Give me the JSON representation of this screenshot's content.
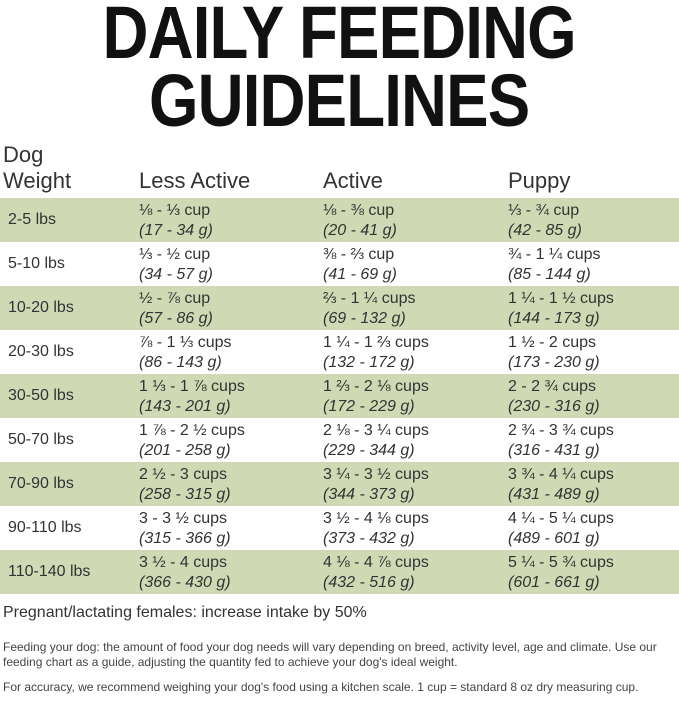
{
  "title": {
    "line1": "DAILY FEEDING",
    "line2": "GUIDELINES"
  },
  "headers": {
    "weight_line1": "Dog",
    "weight_line2": "Weight",
    "less_active": "Less Active",
    "active": "Active",
    "puppy": "Puppy"
  },
  "rows": [
    {
      "weight": "2-5 lbs",
      "less_active": [
        "⅛ - ⅓ cup",
        "(17 - 34 g)"
      ],
      "active": [
        "⅛ - ⅜ cup",
        "(20 - 41 g)"
      ],
      "puppy": [
        "⅓ - ¾ cup",
        "(42 - 85 g)"
      ]
    },
    {
      "weight": "5-10 lbs",
      "less_active": [
        "⅓ - ½ cup",
        "(34 - 57 g)"
      ],
      "active": [
        "⅜ - ⅔ cup",
        "(41 - 69 g)"
      ],
      "puppy": [
        "¾ - 1 ¼ cups",
        "(85 - 144 g)"
      ]
    },
    {
      "weight": "10-20 lbs",
      "less_active": [
        "½ - ⅞ cup",
        "(57 - 86 g)"
      ],
      "active": [
        "⅔ - 1 ¼ cups",
        "(69 - 132 g)"
      ],
      "puppy": [
        "1 ¼ - 1 ½ cups",
        "(144 - 173 g)"
      ]
    },
    {
      "weight": "20-30 lbs",
      "less_active": [
        "⅞ - 1 ⅓ cups",
        "(86 - 143 g)"
      ],
      "active": [
        "1 ¼ - 1 ⅔ cups",
        "(132 - 172 g)"
      ],
      "puppy": [
        "1 ½ - 2 cups",
        "(173 - 230 g)"
      ]
    },
    {
      "weight": "30-50 lbs",
      "less_active": [
        "1 ⅓ - 1 ⅞ cups",
        "(143 - 201 g)"
      ],
      "active": [
        "1 ⅔ - 2 ⅛ cups",
        "(172 - 229 g)"
      ],
      "puppy": [
        "2 - 2 ¾ cups",
        "(230 - 316 g)"
      ]
    },
    {
      "weight": "50-70 lbs",
      "less_active": [
        "1 ⅞ - 2 ½ cups",
        "(201 - 258 g)"
      ],
      "active": [
        "2 ⅛ - 3 ¼ cups",
        "(229 - 344 g)"
      ],
      "puppy": [
        "2 ¾ - 3 ¾ cups",
        "(316 - 431 g)"
      ]
    },
    {
      "weight": "70-90 lbs",
      "less_active": [
        "2 ½ - 3 cups",
        "(258 - 315 g)"
      ],
      "active": [
        "3 ¼ - 3 ½ cups",
        "(344 - 373 g)"
      ],
      "puppy": [
        "3 ¾ - 4 ¼ cups",
        "(431 - 489 g)"
      ]
    },
    {
      "weight": "90-110 lbs",
      "less_active": [
        "3 - 3 ½ cups",
        "(315 - 366 g)"
      ],
      "active": [
        "3 ½ - 4 ⅛ cups",
        "(373 - 432 g)"
      ],
      "puppy": [
        "4 ¼ - 5 ¼ cups",
        "(489 - 601 g)"
      ]
    },
    {
      "weight": "110-140 lbs",
      "less_active": [
        "3 ½ - 4 cups",
        "(366 - 430 g)"
      ],
      "active": [
        "4 ⅛ - 4 ⅞ cups",
        "(432 - 516 g)"
      ],
      "puppy": [
        "5 ¼ - 5 ¾ cups",
        "(601 - 661 g)"
      ]
    }
  ],
  "colors": {
    "band": "#cfdab5"
  },
  "note": "Pregnant/lactating females: increase intake by 50%",
  "paragraphs": [
    "Feeding your dog: the amount of food your dog needs will vary depending on breed, activity level, age and climate. Use our feeding chart as a guide, adjusting the quantity fed to achieve your dog's ideal weight.",
    "For accuracy, we recommend weighing your dog's food using a kitchen scale. 1 cup = standard 8 oz dry measuring cup."
  ]
}
